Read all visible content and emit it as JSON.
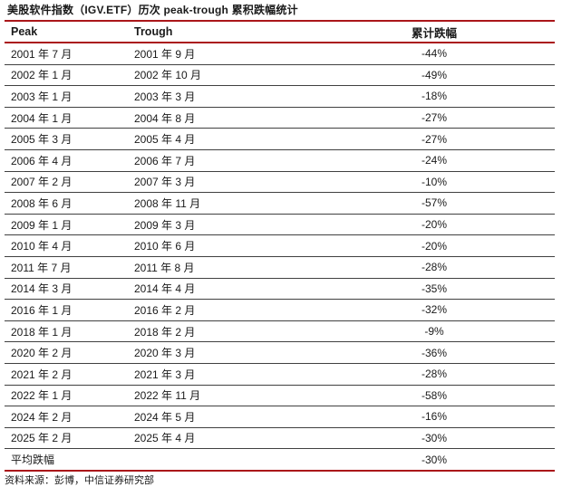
{
  "title": "美股软件指数（IGV.ETF）历次 peak-trough 累积跌幅统计",
  "source": "资料来源：彭博，中信证券研究部",
  "colors": {
    "accent_red": "#aa1619",
    "row_line": "#404040",
    "text": "#1a1a1a",
    "background": "#ffffff"
  },
  "chart_data": {
    "type": "table",
    "title": "美股软件指数（IGV.ETF）历次 peak-trough 累积跌幅统计",
    "columns": [
      "Peak",
      "Trough",
      "累计跌幅"
    ],
    "rows": [
      [
        "2001 年 7 月",
        "2001 年 9 月",
        "-44%"
      ],
      [
        "2002 年 1 月",
        "2002 年 10 月",
        "-49%"
      ],
      [
        "2003 年 1 月",
        "2003 年 3 月",
        "-18%"
      ],
      [
        "2004 年 1 月",
        "2004 年 8 月",
        "-27%"
      ],
      [
        "2005 年 3 月",
        "2005 年 4 月",
        "-27%"
      ],
      [
        "2006 年 4 月",
        "2006 年 7 月",
        "-24%"
      ],
      [
        "2007 年 2 月",
        "2007 年 3 月",
        "-10%"
      ],
      [
        "2008 年 6 月",
        "2008 年 11 月",
        "-57%"
      ],
      [
        "2009 年 1 月",
        "2009 年 3 月",
        "-20%"
      ],
      [
        "2010 年 4 月",
        "2010 年 6 月",
        "-20%"
      ],
      [
        "2011 年 7 月",
        "2011 年 8 月",
        "-28%"
      ],
      [
        "2014 年 3 月",
        "2014 年 4 月",
        "-35%"
      ],
      [
        "2016 年 1 月",
        "2016 年 2 月",
        "-32%"
      ],
      [
        "2018 年 1 月",
        "2018 年 2 月",
        "-9%"
      ],
      [
        "2020 年 2 月",
        "2020 年 3 月",
        "-36%"
      ],
      [
        "2021 年 2 月",
        "2021 年 3 月",
        "-28%"
      ],
      [
        "2022 年 1 月",
        "2022 年 11 月",
        "-58%"
      ],
      [
        "2024 年 2 月",
        "2024 年 5 月",
        "-16%"
      ],
      [
        "2025 年 2 月",
        "2025 年 4 月",
        "-30%"
      ]
    ],
    "summary_row": [
      "平均跌幅",
      "",
      "-30%"
    ],
    "source": "资料来源：彭博，中信证券研究部"
  }
}
